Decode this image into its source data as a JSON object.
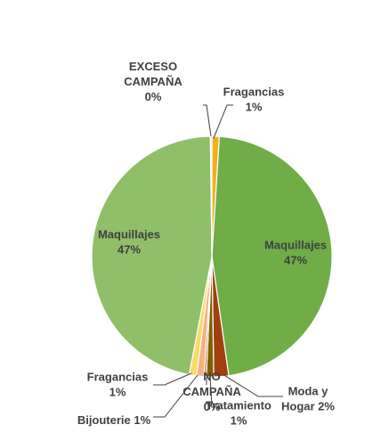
{
  "chart_data": {
    "type": "pie",
    "title": "",
    "legend": "none",
    "slices": [
      {
        "label_lines": [
          "Fragancias",
          "1%"
        ],
        "value": 1,
        "color": "#F2B01E"
      },
      {
        "label_lines": [
          "Maquillajes",
          "47%"
        ],
        "value": 47,
        "color": "#70AD47"
      },
      {
        "label_lines": [
          "Moda y",
          "Hogar 2%"
        ],
        "value": 2,
        "color": "#A0410D"
      },
      {
        "label_lines": [
          "Tratamiento",
          "1%"
        ],
        "value": 1,
        "color": "#7F6000"
      },
      {
        "label_lines": [
          "NO",
          "CAMPAÑA",
          "0%"
        ],
        "value": 0.3,
        "color": "#C55A11"
      },
      {
        "label_lines": [
          "Bijouterie 1%"
        ],
        "value": 1,
        "color": "#F4B183"
      },
      {
        "label_lines": [
          "Fragancias",
          "1%"
        ],
        "value": 1,
        "color": "#FFD966"
      },
      {
        "label_lines": [
          "Maquillajes",
          "47%"
        ],
        "value": 47,
        "color": "#8FBF69"
      },
      {
        "label_lines": [
          "EXCESO",
          "CAMPAÑA",
          "0%"
        ],
        "value": 0.2,
        "color": "#D9D9D9"
      }
    ]
  }
}
